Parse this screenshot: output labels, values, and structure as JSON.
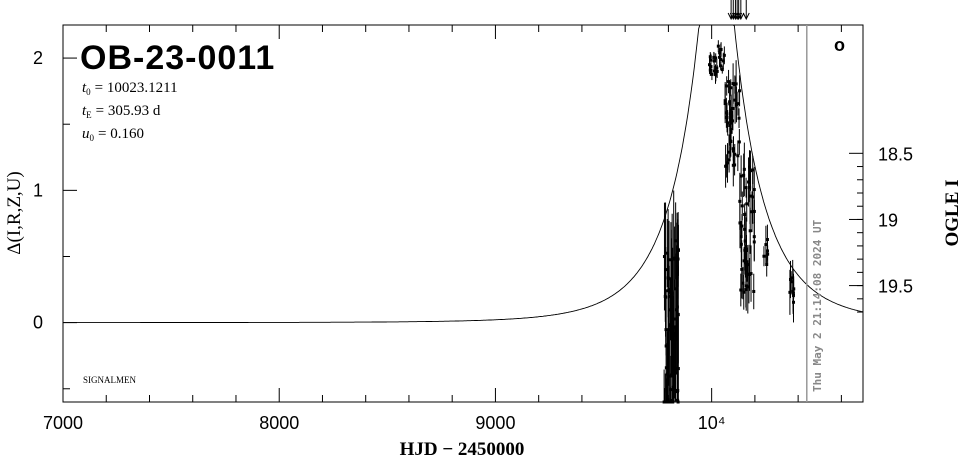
{
  "chart_data": {
    "type": "scatter",
    "title": "OB-23-0011",
    "xlabel": "HJD − 2450000",
    "ylabel_left": "Δ(I,R,Z,U)",
    "ylabel_right": "OGLE I",
    "xlim": [
      7000,
      10700
    ],
    "ylim": [
      -0.6,
      2.25
    ],
    "x_ticks": [
      {
        "value": 7000,
        "label": "7000"
      },
      {
        "value": 8000,
        "label": "8000"
      },
      {
        "value": 9000,
        "label": "9000"
      },
      {
        "value": 10000,
        "label": "10⁴"
      }
    ],
    "y_ticks_left": [
      {
        "value": 0,
        "label": "0"
      },
      {
        "value": 1,
        "label": "1"
      },
      {
        "value": 2,
        "label": "2"
      }
    ],
    "y_ticks_right": [
      {
        "mag": 18.5,
        "label": "18.5"
      },
      {
        "mag": 19.0,
        "label": "19"
      },
      {
        "mag": 19.5,
        "label": "19.5"
      }
    ],
    "mag_zero_level": 19.78,
    "params": [
      {
        "symbol": "t",
        "sub": "0",
        "text": "= 10023.1211"
      },
      {
        "symbol": "t",
        "sub": "E",
        "text": "= 305.93 d"
      },
      {
        "symbol": "u",
        "sub": "0",
        "text": "= 0.160"
      }
    ],
    "model": {
      "t0": 10023.1211,
      "tE": 305.93,
      "u0": 0.16
    },
    "data_groups": [
      {
        "x_start": 9780,
        "x_end": 9850,
        "y_center": -0.1,
        "y_spread": 0.75,
        "err": 0.35,
        "n": 70
      },
      {
        "x_start": 9990,
        "x_end": 10030,
        "y_center": 1.95,
        "y_spread": 0.08,
        "err": 0.05,
        "n": 14
      },
      {
        "x_start": 10030,
        "x_end": 10060,
        "y_center": 2.0,
        "y_spread": 0.1,
        "err": 0.06,
        "n": 10
      },
      {
        "x_start": 10060,
        "x_end": 10130,
        "y_center": 1.5,
        "y_spread": 0.35,
        "err": 0.12,
        "n": 40
      },
      {
        "x_start": 10130,
        "x_end": 10200,
        "y_center": 0.7,
        "y_spread": 0.5,
        "err": 0.15,
        "n": 45
      },
      {
        "x_start": 10240,
        "x_end": 10260,
        "y_center": 0.5,
        "y_spread": 0.15,
        "err": 0.1,
        "n": 6
      },
      {
        "x_start": 10360,
        "x_end": 10380,
        "y_center": 0.3,
        "y_spread": 0.15,
        "err": 0.12,
        "n": 10
      }
    ],
    "arrow_markers_x": [
      10090,
      10100,
      10110,
      10118,
      10125,
      10135,
      10160
    ],
    "current_date_x": 10440,
    "current_date_text": "Thu May  2 21:14:08 2024 UT",
    "legend_symbol": "o",
    "credit": "SIGNALMEN",
    "grid": false,
    "colors": {
      "axes": "#000000",
      "data": "#000000",
      "date_line": "#999999",
      "date_text": "#888888"
    }
  }
}
